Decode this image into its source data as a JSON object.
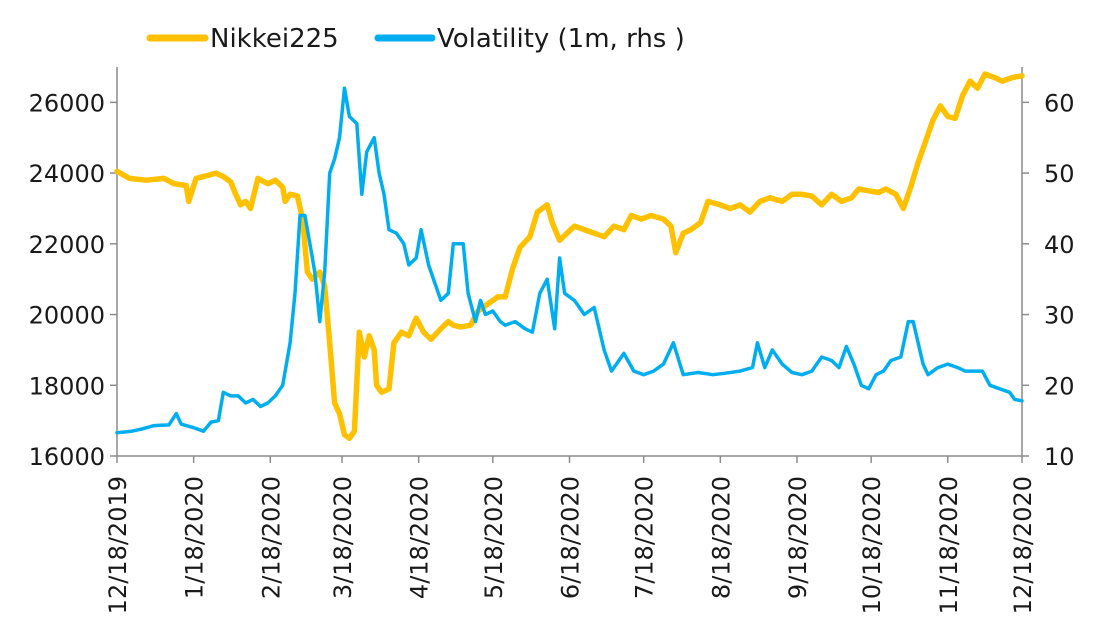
{
  "chart_data": {
    "type": "line",
    "x_start": "12/18/2019",
    "x_end": "12/18/2020",
    "x_tick_labels": [
      "12/18/2019",
      "1/18/2020",
      "2/18/2020",
      "3/18/2020",
      "4/18/2020",
      "5/18/2020",
      "6/18/2020",
      "7/18/2020",
      "8/18/2020",
      "9/18/2020",
      "10/18/2020",
      "11/18/2020",
      "12/18/2020"
    ],
    "y_left": {
      "min": 16000,
      "max": 27000,
      "ticks": [
        16000,
        18000,
        20000,
        22000,
        24000,
        26000
      ]
    },
    "y_right": {
      "min": 10,
      "max": 65,
      "ticks": [
        10,
        20,
        30,
        40,
        50,
        60
      ]
    },
    "legend_position": "top",
    "grid": false,
    "series": [
      {
        "name": "Nikkei225",
        "axis": "left",
        "color": "#FFC000",
        "points": [
          [
            "12/18/2019",
            24050
          ],
          [
            "12/23/2019",
            23850
          ],
          [
            "12/30/2019",
            23800
          ],
          [
            "1/6/2020",
            23850
          ],
          [
            "1/10/2020",
            23700
          ],
          [
            "1/15/2020",
            23650
          ],
          [
            "1/16/2020",
            23200
          ],
          [
            "1/19/2020",
            23850
          ],
          [
            "1/22/2020",
            23900
          ],
          [
            "1/27/2020",
            24000
          ],
          [
            "1/30/2020",
            23900
          ],
          [
            "2/2/2020",
            23750
          ],
          [
            "2/4/2020",
            23400
          ],
          [
            "2/6/2020",
            23100
          ],
          [
            "2/8/2020",
            23200
          ],
          [
            "2/10/2020",
            23000
          ],
          [
            "2/13/2020",
            23850
          ],
          [
            "2/17/2020",
            23700
          ],
          [
            "2/20/2020",
            23800
          ],
          [
            "2/23/2020",
            23600
          ],
          [
            "2/24/2020",
            23200
          ],
          [
            "2/26/2020",
            23400
          ],
          [
            "2/29/2020",
            23350
          ],
          [
            "3/2/2020",
            22700
          ],
          [
            "3/4/2020",
            21200
          ],
          [
            "3/6/2020",
            21000
          ],
          [
            "3/9/2020",
            21200
          ],
          [
            "3/11/2020",
            20800
          ],
          [
            "3/13/2020",
            19200
          ],
          [
            "3/15/2020",
            17500
          ],
          [
            "3/17/2020",
            17200
          ],
          [
            "3/19/2020",
            16600
          ],
          [
            "3/21/2020",
            16500
          ],
          [
            "3/23/2020",
            16700
          ],
          [
            "3/25/2020",
            19500
          ],
          [
            "3/27/2020",
            18800
          ],
          [
            "3/29/2020",
            19400
          ],
          [
            "3/31/2020",
            19000
          ],
          [
            "4/1/2020",
            18000
          ],
          [
            "4/3/2020",
            17800
          ],
          [
            "4/6/2020",
            17900
          ],
          [
            "4/8/2020",
            19200
          ],
          [
            "4/11/2020",
            19500
          ],
          [
            "4/14/2020",
            19400
          ],
          [
            "4/17/2020",
            19900
          ],
          [
            "4/20/2020",
            19500
          ],
          [
            "4/23/2020",
            19300
          ],
          [
            "4/27/2020",
            19600
          ],
          [
            "4/30/2020",
            19800
          ],
          [
            "5/2/2020",
            19700
          ],
          [
            "5/5/2020",
            19650
          ],
          [
            "5/9/2020",
            19700
          ],
          [
            "5/12/2020",
            20100
          ],
          [
            "5/16/2020",
            20300
          ],
          [
            "5/20/2020",
            20500
          ],
          [
            "5/23/2020",
            20500
          ],
          [
            "5/26/2020",
            21300
          ],
          [
            "5/29/2020",
            21900
          ],
          [
            "6/2/2020",
            22200
          ],
          [
            "6/5/2020",
            22900
          ],
          [
            "6/9/2020",
            23100
          ],
          [
            "6/11/2020",
            22600
          ],
          [
            "6/14/2020",
            22100
          ],
          [
            "6/17/2020",
            22300
          ],
          [
            "6/20/2020",
            22500
          ],
          [
            "6/24/2020",
            22400
          ],
          [
            "6/28/2020",
            22300
          ],
          [
            "7/2/2020",
            22200
          ],
          [
            "7/6/2020",
            22500
          ],
          [
            "7/10/2020",
            22400
          ],
          [
            "7/13/2020",
            22800
          ],
          [
            "7/17/2020",
            22700
          ],
          [
            "7/21/2020",
            22800
          ],
          [
            "7/26/2020",
            22700
          ],
          [
            "7/29/2020",
            22500
          ],
          [
            "7/31/2020",
            21750
          ],
          [
            "8/3/2020",
            22300
          ],
          [
            "8/6/2020",
            22400
          ],
          [
            "8/10/2020",
            22600
          ],
          [
            "8/13/2020",
            23200
          ],
          [
            "8/18/2020",
            23100
          ],
          [
            "8/22/2020",
            23000
          ],
          [
            "8/26/2020",
            23100
          ],
          [
            "8/30/2020",
            22900
          ],
          [
            "9/3/2020",
            23200
          ],
          [
            "9/7/2020",
            23300
          ],
          [
            "9/12/2020",
            23200
          ],
          [
            "9/16/2020",
            23400
          ],
          [
            "9/20/2020",
            23400
          ],
          [
            "9/24/2020",
            23350
          ],
          [
            "9/28/2020",
            23100
          ],
          [
            "10/2/2020",
            23400
          ],
          [
            "10/6/2020",
            23200
          ],
          [
            "10/10/2020",
            23300
          ],
          [
            "10/13/2020",
            23550
          ],
          [
            "10/17/2020",
            23500
          ],
          [
            "10/21/2020",
            23450
          ],
          [
            "10/24/2020",
            23550
          ],
          [
            "10/28/2020",
            23400
          ],
          [
            "10/31/2020",
            23000
          ],
          [
            "11/3/2020",
            23600
          ],
          [
            "11/6/2020",
            24300
          ],
          [
            "11/9/2020",
            24900
          ],
          [
            "11/12/2020",
            25500
          ],
          [
            "11/15/2020",
            25900
          ],
          [
            "11/18/2020",
            25600
          ],
          [
            "11/21/2020",
            25550
          ],
          [
            "11/24/2020",
            26200
          ],
          [
            "11/27/2020",
            26600
          ],
          [
            "11/30/2020",
            26400
          ],
          [
            "12/3/2020",
            26800
          ],
          [
            "12/7/2020",
            26700
          ],
          [
            "12/10/2020",
            26600
          ],
          [
            "12/14/2020",
            26700
          ],
          [
            "12/18/2020",
            26750
          ]
        ]
      },
      {
        "name": "Volatility (1m, rhs )",
        "axis": "right",
        "color": "#00AEEF",
        "points": [
          [
            "12/18/2019",
            13.3
          ],
          [
            "12/24/2019",
            13.5
          ],
          [
            "12/28/2019",
            13.8
          ],
          [
            "1/2/2020",
            14.3
          ],
          [
            "1/8/2020",
            14.4
          ],
          [
            "1/11/2020",
            16.0
          ],
          [
            "1/13/2020",
            14.5
          ],
          [
            "1/18/2020",
            14.0
          ],
          [
            "1/22/2020",
            13.5
          ],
          [
            "1/25/2020",
            14.8
          ],
          [
            "1/28/2020",
            15.0
          ],
          [
            "1/30/2020",
            19.0
          ],
          [
            "2/2/2020",
            18.5
          ],
          [
            "2/5/2020",
            18.5
          ],
          [
            "2/8/2020",
            17.5
          ],
          [
            "2/11/2020",
            18.0
          ],
          [
            "2/14/2020",
            17.0
          ],
          [
            "2/17/2020",
            17.5
          ],
          [
            "2/20/2020",
            18.5
          ],
          [
            "2/23/2020",
            20.0
          ],
          [
            "2/26/2020",
            26.0
          ],
          [
            "2/28/2020",
            33.0
          ],
          [
            "3/1/2020",
            44.0
          ],
          [
            "3/3/2020",
            44.0
          ],
          [
            "3/5/2020",
            40.0
          ],
          [
            "3/7/2020",
            36.0
          ],
          [
            "3/9/2020",
            29.0
          ],
          [
            "3/11/2020",
            36.0
          ],
          [
            "3/13/2020",
            50.0
          ],
          [
            "3/15/2020",
            52.0
          ],
          [
            "3/17/2020",
            55.0
          ],
          [
            "3/19/2020",
            62.0
          ],
          [
            "3/21/2020",
            58.0
          ],
          [
            "3/24/2020",
            57.0
          ],
          [
            "3/26/2020",
            47.0
          ],
          [
            "3/28/2020",
            53.0
          ],
          [
            "3/31/2020",
            55.0
          ],
          [
            "4/2/2020",
            50.0
          ],
          [
            "4/4/2020",
            47.0
          ],
          [
            "4/6/2020",
            42.0
          ],
          [
            "4/9/2020",
            41.5
          ],
          [
            "4/12/2020",
            40.0
          ],
          [
            "4/14/2020",
            37.0
          ],
          [
            "4/17/2020",
            38.0
          ],
          [
            "4/19/2020",
            42.0
          ],
          [
            "4/22/2020",
            37.0
          ],
          [
            "4/24/2020",
            35.0
          ],
          [
            "4/27/2020",
            32.0
          ],
          [
            "4/30/2020",
            33.0
          ],
          [
            "5/2/2020",
            40.0
          ],
          [
            "5/6/2020",
            40.0
          ],
          [
            "5/8/2020",
            33.0
          ],
          [
            "5/11/2020",
            29.0
          ],
          [
            "5/13/2020",
            32.0
          ],
          [
            "5/15/2020",
            30.0
          ],
          [
            "5/18/2020",
            30.5
          ],
          [
            "5/21/2020",
            29.0
          ],
          [
            "5/23/2020",
            28.5
          ],
          [
            "5/27/2020",
            29.0
          ],
          [
            "5/31/2020",
            28.0
          ],
          [
            "6/3/2020",
            27.5
          ],
          [
            "6/6/2020",
            33.0
          ],
          [
            "6/9/2020",
            35.0
          ],
          [
            "6/12/2020",
            28.0
          ],
          [
            "6/14/2020",
            38.0
          ],
          [
            "6/16/2020",
            33.0
          ],
          [
            "6/20/2020",
            32.0
          ],
          [
            "6/24/2020",
            30.0
          ],
          [
            "6/28/2020",
            31.0
          ],
          [
            "7/2/2020",
            25.0
          ],
          [
            "7/5/2020",
            22.0
          ],
          [
            "7/10/2020",
            24.5
          ],
          [
            "7/14/2020",
            22.0
          ],
          [
            "7/18/2020",
            21.5
          ],
          [
            "7/22/2020",
            22.0
          ],
          [
            "7/26/2020",
            23.0
          ],
          [
            "7/30/2020",
            26.0
          ],
          [
            "8/3/2020",
            21.5
          ],
          [
            "8/9/2020",
            21.8
          ],
          [
            "8/15/2020",
            21.5
          ],
          [
            "8/20/2020",
            21.7
          ],
          [
            "8/26/2020",
            22.0
          ],
          [
            "8/31/2020",
            22.5
          ],
          [
            "9/2/2020",
            26.0
          ],
          [
            "9/5/2020",
            22.5
          ],
          [
            "9/8/2020",
            25.0
          ],
          [
            "9/12/2020",
            23.0
          ],
          [
            "9/16/2020",
            21.8
          ],
          [
            "9/20/2020",
            21.5
          ],
          [
            "9/24/2020",
            22.0
          ],
          [
            "9/28/2020",
            24.0
          ],
          [
            "10/2/2020",
            23.5
          ],
          [
            "10/5/2020",
            22.5
          ],
          [
            "10/8/2020",
            25.5
          ],
          [
            "10/11/2020",
            23.0
          ],
          [
            "10/14/2020",
            20.0
          ],
          [
            "10/17/2020",
            19.5
          ],
          [
            "10/20/2020",
            21.5
          ],
          [
            "10/23/2020",
            22.0
          ],
          [
            "10/26/2020",
            23.5
          ],
          [
            "10/30/2020",
            24.0
          ],
          [
            "11/2/2020",
            29.0
          ],
          [
            "11/4/2020",
            29.0
          ],
          [
            "11/6/2020",
            26.0
          ],
          [
            "11/8/2020",
            23.0
          ],
          [
            "11/10/2020",
            21.5
          ],
          [
            "11/14/2020",
            22.5
          ],
          [
            "11/18/2020",
            23.0
          ],
          [
            "11/22/2020",
            22.5
          ],
          [
            "11/25/2020",
            22.0
          ],
          [
            "11/29/2020",
            22.0
          ],
          [
            "12/2/2020",
            22.0
          ],
          [
            "12/5/2020",
            20.0
          ],
          [
            "12/9/2020",
            19.5
          ],
          [
            "12/13/2020",
            19.0
          ],
          [
            "12/15/2020",
            18.0
          ],
          [
            "12/18/2020",
            17.8
          ]
        ]
      }
    ]
  }
}
